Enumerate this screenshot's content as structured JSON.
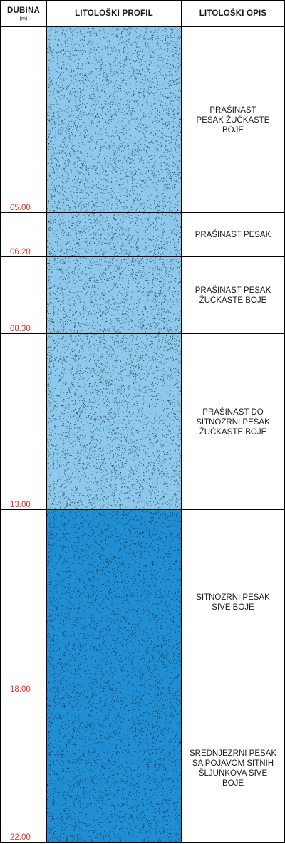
{
  "header": {
    "depth_title": "DUBINA",
    "depth_unit": "(m)",
    "profile_title": "LITOLOŠKI PROFIL",
    "description_title": "LITOLOŠKI OPIS"
  },
  "colors": {
    "light_sand": "#8cc9ec",
    "dark_sand": "#1f8ed2",
    "depth_label": "#e8322a",
    "dots": "#111111"
  },
  "layers": [
    {
      "depth_label": "05.00",
      "description": "PRAŠINAST\nPESAK ŽUĆKASTE\nBOJE",
      "pattern": "light-dotted"
    },
    {
      "depth_label": "06.20",
      "description": "PRAŠINAST PESAK",
      "pattern": "light-dotted"
    },
    {
      "depth_label": "08.30",
      "description": "PRAŠINAST PESAK\nŽUĆKASTE BOJE",
      "pattern": "light-dotted"
    },
    {
      "depth_label": "13.00",
      "description": "PRAŠINAST DO\nSITNOZRNI PESAK\nŽUĆKASTE BOJE",
      "pattern": "light-dotted"
    },
    {
      "depth_label": "18.00",
      "description": "SITNOZRNI PESAK\nSIVE BOJE",
      "pattern": "dark-dotted"
    },
    {
      "depth_label": "22.00",
      "description": "SREDNJEZRNI PESAK\nSA POJAVOM SITNIH\nŠLJUNKOVA SIVE\nBOJE",
      "pattern": "dark-dotted"
    }
  ]
}
